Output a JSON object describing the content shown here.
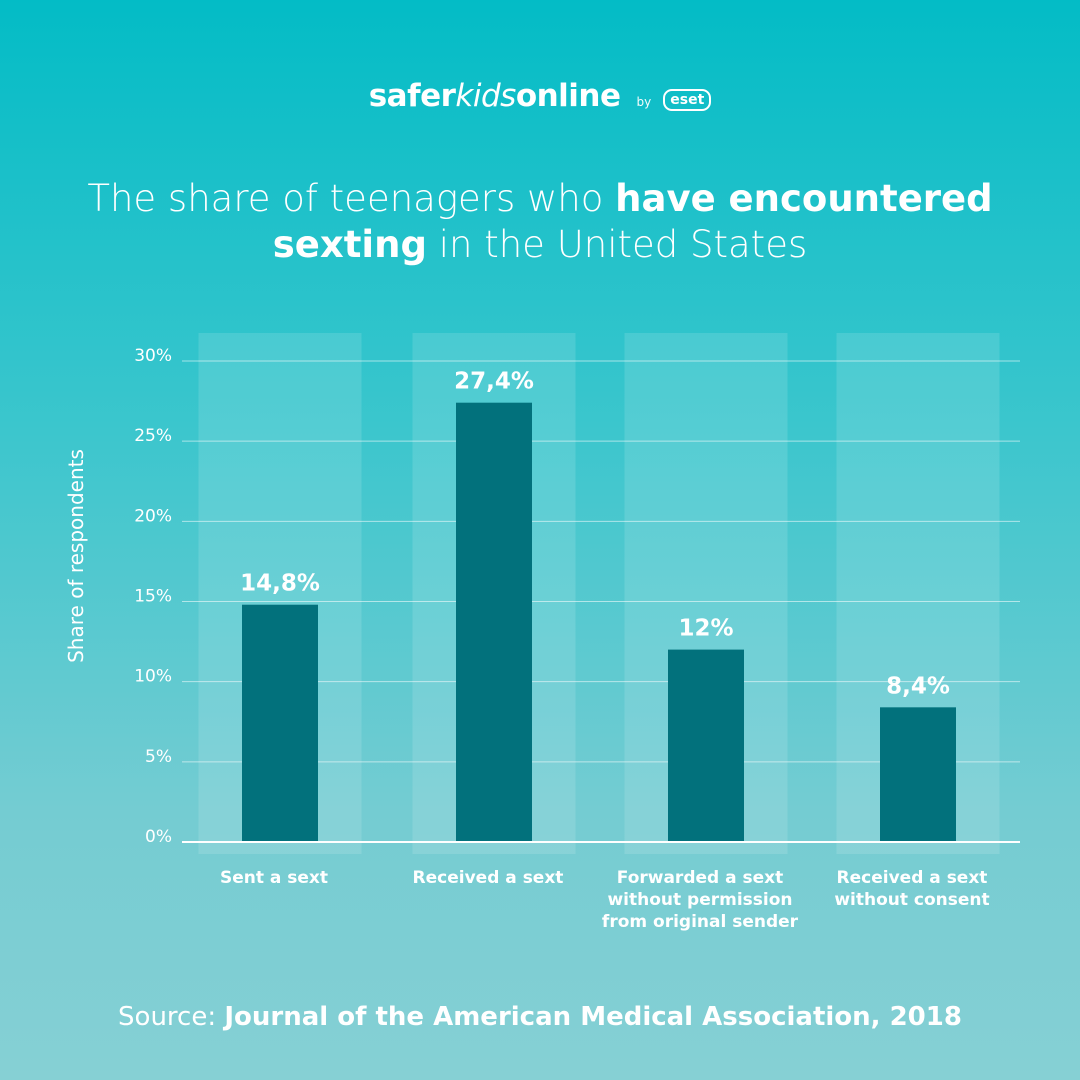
{
  "brand": {
    "safer": "safer",
    "kids": "kids",
    "online": "online",
    "by": "by",
    "eset": "eset"
  },
  "title": {
    "part1": "The share of teenagers who ",
    "bold1": "have encountered",
    "bold2": "sexting",
    "part2": " in the United States"
  },
  "source": {
    "label": "Source: ",
    "name": "Journal of the American Medical Association, 2018"
  },
  "colors": {
    "bar": "#02717c",
    "column_bg": "rgba(255,255,255,0.13)",
    "grid": "rgba(255,255,255,0.55)"
  },
  "chart_data": {
    "type": "bar",
    "ylabel": "Share of respondents",
    "ylim": [
      0,
      30
    ],
    "yticks": [
      0,
      5,
      10,
      15,
      20,
      25,
      30
    ],
    "ytick_labels": [
      "0%",
      "5%",
      "10%",
      "15%",
      "20%",
      "25%",
      "30%"
    ],
    "categories": [
      [
        "Sent a sext"
      ],
      [
        "Received a sext"
      ],
      [
        "Forwarded a sext",
        "without permission",
        "from original sender"
      ],
      [
        "Received a sext",
        "without consent"
      ]
    ],
    "values": [
      14.8,
      27.4,
      12,
      8.4
    ],
    "data_labels": [
      "14,8%",
      "27,4%",
      "12%",
      "8,4%"
    ],
    "grid": true
  }
}
